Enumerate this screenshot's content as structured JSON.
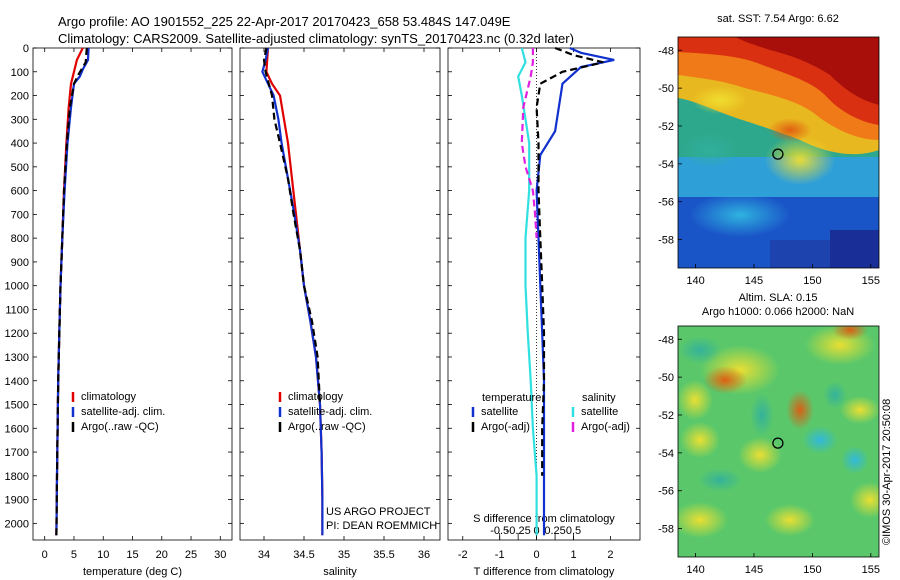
{
  "header": {
    "line1": "Argo profile: AO 1901552_225 22-Apr-2017 20170423_658 53.484S 147.049E",
    "line2": "Climatology: CARS2009. Satellite-adjusted climatology: synTS_20170423.nc (0.32d later)"
  },
  "project_note": {
    "line1": "US ARGO PROJECT",
    "line2": "PI: DEAN ROEMMICH"
  },
  "credit": "©IMOS 30-Apr-2017 20:50:08",
  "colors": {
    "climatology": "#e00000",
    "satellite": "#1030d0",
    "argo": "#000000",
    "sat_s": "#30e0e0",
    "argo_s": "#e020e0"
  },
  "chart_data": [
    {
      "type": "line",
      "xlabel": "temperature (deg C)",
      "ylabel": "",
      "xlim": [
        -2,
        32
      ],
      "ylim": [
        2070,
        0
      ],
      "xticks": [
        0,
        5,
        10,
        15,
        20,
        25,
        30
      ],
      "yticks": [
        0,
        100,
        200,
        300,
        400,
        500,
        600,
        700,
        800,
        900,
        1000,
        1100,
        1200,
        1300,
        1400,
        1500,
        1600,
        1700,
        1800,
        1900,
        2000
      ],
      "legend": [
        "climatology",
        "satellite-adj. clim.",
        "Argo(..raw -QC)"
      ],
      "series": [
        {
          "name": "climatology",
          "color": "#e00000",
          "dash": false,
          "points": [
            [
              6.5,
              0
            ],
            [
              5.5,
              50
            ],
            [
              5,
              100
            ],
            [
              4.5,
              150
            ],
            [
              4.1,
              250
            ],
            [
              3.7,
              400
            ],
            [
              3.3,
              600
            ],
            [
              3.0,
              800
            ],
            [
              2.7,
              1000
            ],
            [
              2.5,
              1200
            ],
            [
              2.3,
              1400
            ],
            [
              2.2,
              1600
            ],
            [
              2.1,
              1800
            ],
            [
              2.0,
              2050
            ]
          ]
        },
        {
          "name": "satellite-adj. clim.",
          "color": "#1030d0",
          "dash": false,
          "points": [
            [
              7.5,
              0
            ],
            [
              7.4,
              50
            ],
            [
              6.5,
              90
            ],
            [
              6,
              120
            ],
            [
              5,
              150
            ],
            [
              4.5,
              250
            ],
            [
              3.9,
              400
            ],
            [
              3.4,
              600
            ],
            [
              3.0,
              800
            ],
            [
              2.7,
              1000
            ],
            [
              2.5,
              1200
            ],
            [
              2.3,
              1400
            ],
            [
              2.2,
              1600
            ],
            [
              2.1,
              1800
            ],
            [
              2.0,
              2050
            ]
          ]
        },
        {
          "name": "Argo(..raw -QC)",
          "color": "#000000",
          "dash": true,
          "points": [
            [
              7.2,
              0
            ],
            [
              7.0,
              60
            ],
            [
              5.8,
              110
            ],
            [
              5,
              150
            ],
            [
              4.3,
              250
            ],
            [
              3.8,
              400
            ],
            [
              3.3,
              600
            ],
            [
              3.0,
              800
            ],
            [
              2.7,
              1000
            ],
            [
              2.5,
              1200
            ],
            [
              2.3,
              1400
            ],
            [
              2.2,
              1600
            ],
            [
              2.1,
              1800
            ],
            [
              2.0,
              2050
            ]
          ]
        }
      ]
    },
    {
      "type": "line",
      "xlabel": "salinity",
      "xlim": [
        33.7,
        36.2
      ],
      "ylim": [
        2070,
        0
      ],
      "xticks": [
        34,
        34.5,
        35,
        35.5,
        36
      ],
      "legend": [
        "climatology",
        "satellite-adj. clim.",
        "Argo(..raw -QC)"
      ],
      "series": [
        {
          "name": "climatology",
          "color": "#e00000",
          "dash": false,
          "points": [
            [
              34.05,
              0
            ],
            [
              34.04,
              50
            ],
            [
              34.03,
              100
            ],
            [
              34.1,
              150
            ],
            [
              34.2,
              200
            ],
            [
              34.25,
              300
            ],
            [
              34.3,
              400
            ],
            [
              34.35,
              550
            ],
            [
              34.4,
              700
            ],
            [
              34.45,
              850
            ],
            [
              34.5,
              1000
            ],
            [
              34.58,
              1150
            ],
            [
              34.65,
              1300
            ],
            [
              34.7,
              1500
            ],
            [
              34.72,
              1700
            ],
            [
              34.73,
              1900
            ],
            [
              34.73,
              2050
            ]
          ]
        },
        {
          "name": "satellite-adj. clim.",
          "color": "#1030d0",
          "dash": false,
          "points": [
            [
              34.05,
              0
            ],
            [
              34.02,
              50
            ],
            [
              33.98,
              100
            ],
            [
              34.05,
              150
            ],
            [
              34.12,
              200
            ],
            [
              34.18,
              300
            ],
            [
              34.22,
              400
            ],
            [
              34.3,
              550
            ],
            [
              34.38,
              700
            ],
            [
              34.45,
              850
            ],
            [
              34.5,
              1000
            ],
            [
              34.58,
              1150
            ],
            [
              34.65,
              1300
            ],
            [
              34.7,
              1500
            ],
            [
              34.72,
              1700
            ],
            [
              34.73,
              1900
            ],
            [
              34.73,
              2050
            ]
          ]
        },
        {
          "name": "Argo(..raw -QC)",
          "color": "#000000",
          "dash": true,
          "points": [
            [
              34.03,
              0
            ],
            [
              34.0,
              50
            ],
            [
              34.02,
              100
            ],
            [
              34.06,
              150
            ],
            [
              34.1,
              200
            ],
            [
              34.13,
              300
            ],
            [
              34.2,
              400
            ],
            [
              34.3,
              550
            ],
            [
              34.37,
              700
            ],
            [
              34.45,
              850
            ],
            [
              34.5,
              1000
            ],
            [
              34.6,
              1150
            ],
            [
              34.67,
              1300
            ],
            [
              34.7,
              1500
            ]
          ]
        }
      ]
    },
    {
      "type": "line",
      "xlabel": "T difference from climatology",
      "title2": "S difference from climatology",
      "xlim": [
        -2.4,
        2.8
      ],
      "ylim": [
        2070,
        0
      ],
      "xticks": [
        -2,
        -1,
        0,
        1,
        2
      ],
      "sticks": [
        -0.5,
        -0.25,
        0,
        0.25,
        0.5
      ],
      "stick_labels": [
        "-0.5",
        "-0.25",
        "0",
        "0.25",
        "0.5"
      ],
      "legend_temperature": {
        "title": "temperature",
        "items": [
          "satellite",
          "Argo(-adj)"
        ]
      },
      "legend_salinity": {
        "title": "salinity",
        "items": [
          "satellite",
          "Argo(-adj)"
        ]
      },
      "series": [
        {
          "name": "T satellite",
          "color": "#1030d0",
          "dash": false,
          "points": [
            [
              0.9,
              0
            ],
            [
              1.2,
              20
            ],
            [
              2.1,
              50
            ],
            [
              1.2,
              80
            ],
            [
              0.7,
              150
            ],
            [
              0.6,
              250
            ],
            [
              0.5,
              350
            ],
            [
              0.1,
              450
            ],
            [
              0.0,
              600
            ],
            [
              0.05,
              800
            ],
            [
              0.1,
              1000
            ],
            [
              0.15,
              1200
            ],
            [
              0.2,
              1400
            ],
            [
              0.2,
              1600
            ],
            [
              0.2,
              1800
            ],
            [
              0.2,
              2050
            ]
          ]
        },
        {
          "name": "T Argo(-adj)",
          "color": "#000000",
          "dash": true,
          "points": [
            [
              0.5,
              0
            ],
            [
              1.0,
              30
            ],
            [
              1.8,
              60
            ],
            [
              0.7,
              100
            ],
            [
              0.1,
              150
            ],
            [
              0.0,
              250
            ],
            [
              0.05,
              400
            ],
            [
              0.05,
              600
            ],
            [
              0.1,
              800
            ],
            [
              0.15,
              1000
            ],
            [
              0.2,
              1200
            ],
            [
              0.2,
              1400
            ],
            [
              0.15,
              1600
            ],
            [
              0.15,
              1800
            ]
          ]
        },
        {
          "name": "S satellite",
          "color": "#30e0e0",
          "dash": false,
          "points": [
            [
              -0.2,
              0
            ],
            [
              -0.15,
              60
            ],
            [
              -0.25,
              120
            ],
            [
              -0.2,
              200
            ],
            [
              -0.15,
              300
            ],
            [
              -0.1,
              400
            ],
            [
              -0.1,
              500
            ],
            [
              -0.1,
              600
            ],
            [
              -0.15,
              800
            ],
            [
              -0.15,
              1000
            ],
            [
              -0.12,
              1200
            ],
            [
              -0.08,
              1400
            ],
            [
              -0.05,
              1600
            ],
            [
              0.0,
              1800
            ],
            [
              0.0,
              2050
            ]
          ]
        },
        {
          "name": "S Argo(-adj)",
          "color": "#e020e0",
          "dash": true,
          "points": [
            [
              -0.05,
              0
            ],
            [
              -0.05,
              60
            ],
            [
              -0.08,
              120
            ],
            [
              -0.18,
              250
            ],
            [
              -0.2,
              400
            ],
            [
              -0.15,
              500
            ],
            [
              -0.05,
              600
            ],
            [
              -0.02,
              700
            ],
            [
              0.0,
              800
            ]
          ]
        }
      ]
    }
  ],
  "sst_map": {
    "title": "sat. SST: 7.54 Argo: 6.62",
    "xticks": [
      "140",
      "145",
      "150",
      "155"
    ],
    "yticks": [
      "-48",
      "-50",
      "-52",
      "-54",
      "-56",
      "-58"
    ],
    "point": {
      "lon": 147.049,
      "lat": -53.484
    }
  },
  "sla_map": {
    "title1": "Altim. SLA: 0.15",
    "title2": "Argo h1000: 0.066 h2000: NaN",
    "xticks": [
      "140",
      "145",
      "150",
      "155"
    ],
    "yticks": [
      "-48",
      "-50",
      "-52",
      "-54",
      "-56",
      "-58"
    ],
    "point": {
      "lon": 147.049,
      "lat": -53.484
    }
  }
}
